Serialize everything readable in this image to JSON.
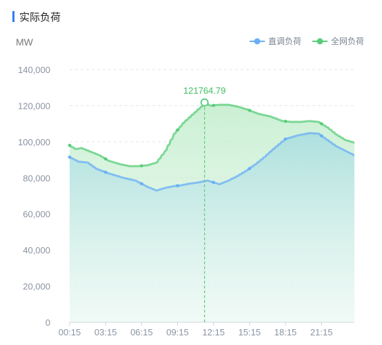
{
  "panel": {
    "title": "实际负荷"
  },
  "chart_data": {
    "type": "area",
    "ylabel": "MW",
    "ylim": [
      0,
      140000
    ],
    "yticks": [
      "0",
      "20,000",
      "40,000",
      "60,000",
      "80,000",
      "100,000",
      "120,000",
      "140,000"
    ],
    "yticks_values": [
      0,
      20000,
      40000,
      60000,
      80000,
      100000,
      120000,
      140000
    ],
    "xticks": [
      "00:15",
      "03:15",
      "06:15",
      "09:15",
      "12:15",
      "15:15",
      "18:15",
      "21:15"
    ],
    "grid": "horizontal-dashed",
    "legend_position": "top-right",
    "x_count": 96,
    "x_tick_indices": [
      0,
      12,
      24,
      36,
      48,
      60,
      72,
      84
    ],
    "series": [
      {
        "name": "直调负荷",
        "color": "#6aaef5",
        "anchor_x": [
          0,
          3,
          6,
          9,
          13,
          18,
          22,
          26,
          29,
          32,
          35,
          37,
          40,
          43,
          46,
          48,
          50,
          53,
          56,
          59,
          62,
          65,
          68,
          72,
          76,
          80,
          83,
          86,
          89,
          92,
          95
        ],
        "anchor_y": [
          91500,
          89000,
          88500,
          85000,
          82500,
          80000,
          78500,
          75000,
          73000,
          74500,
          75500,
          75800,
          76800,
          77500,
          78500,
          77500,
          76500,
          78500,
          81000,
          84000,
          87500,
          91500,
          96000,
          101500,
          103500,
          104800,
          104500,
          101000,
          97500,
          95000,
          92500
        ]
      },
      {
        "name": "全网负荷",
        "color": "#58cc7a",
        "anchor_x": [
          0,
          2,
          4,
          7,
          10,
          13,
          17,
          20,
          23,
          26,
          29,
          32,
          35,
          38,
          41,
          44,
          45,
          47,
          50,
          53,
          56,
          59,
          63,
          67,
          71,
          74,
          77,
          80,
          83,
          86,
          89,
          92,
          95
        ],
        "anchor_y": [
          98000,
          96000,
          96500,
          94500,
          92500,
          89500,
          87500,
          86500,
          86500,
          87000,
          88500,
          95000,
          104500,
          110500,
          115000,
          119500,
          121764.79,
          120000,
          120500,
          120500,
          119500,
          118000,
          115500,
          114000,
          111500,
          111000,
          111000,
          111500,
          111000,
          108000,
          104000,
          101000,
          99500
        ]
      }
    ],
    "marker_every": 12,
    "annotation": {
      "index": 45,
      "value": 121764.79,
      "label": "121764.79"
    }
  }
}
